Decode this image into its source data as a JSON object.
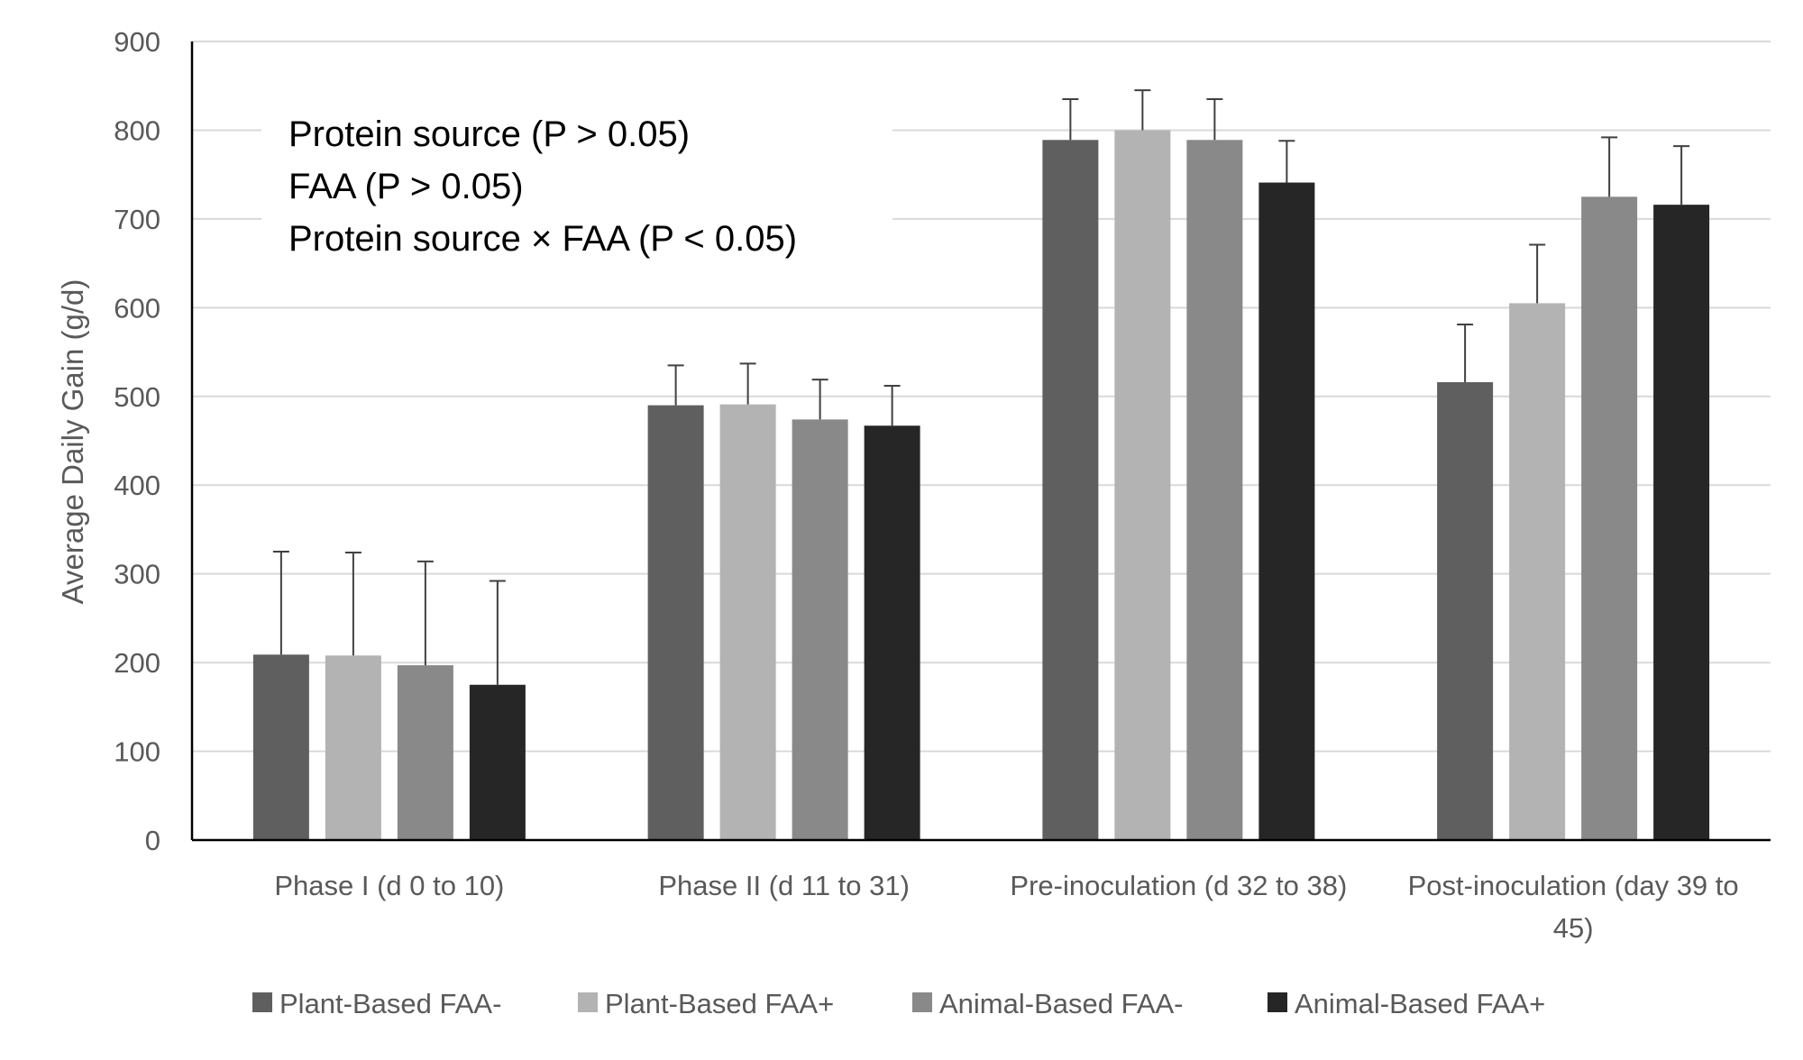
{
  "chart_data": {
    "type": "bar",
    "ylabel": "Average Daily Gain (g/d)",
    "xlabel": "",
    "ylim": [
      0,
      900
    ],
    "yticks": [
      0,
      100,
      200,
      300,
      400,
      500,
      600,
      700,
      800,
      900
    ],
    "grid": true,
    "legend_position": "bottom",
    "categories": [
      [
        "Phase I (d 0 to 10)"
      ],
      [
        "Phase II (d 11 to 31)"
      ],
      [
        "Pre-inoculation (d 32 to 38)"
      ],
      [
        "Post-inoculation (day 39 to",
        "45)"
      ]
    ],
    "series": [
      {
        "name": "Plant-Based FAA-",
        "color": "#5f5f5f",
        "values": [
          209,
          490,
          789,
          516
        ],
        "errors": [
          116,
          45,
          46,
          65
        ]
      },
      {
        "name": "Plant-Based FAA+",
        "color": "#b3b3b3",
        "values": [
          208,
          491,
          800,
          605
        ],
        "errors": [
          116,
          46,
          45,
          66
        ]
      },
      {
        "name": "Animal-Based FAA-",
        "color": "#898989",
        "values": [
          197,
          474,
          789,
          725
        ],
        "errors": [
          117,
          45,
          46,
          67
        ]
      },
      {
        "name": "Animal-Based FAA+",
        "color": "#262626",
        "values": [
          175,
          467,
          741,
          716
        ],
        "errors": [
          117,
          45,
          47,
          66
        ]
      }
    ],
    "annotations": [
      "Protein source (P > 0.05)",
      "FAA (P > 0.05)",
      "Protein source × FAA (P < 0.05)"
    ]
  }
}
